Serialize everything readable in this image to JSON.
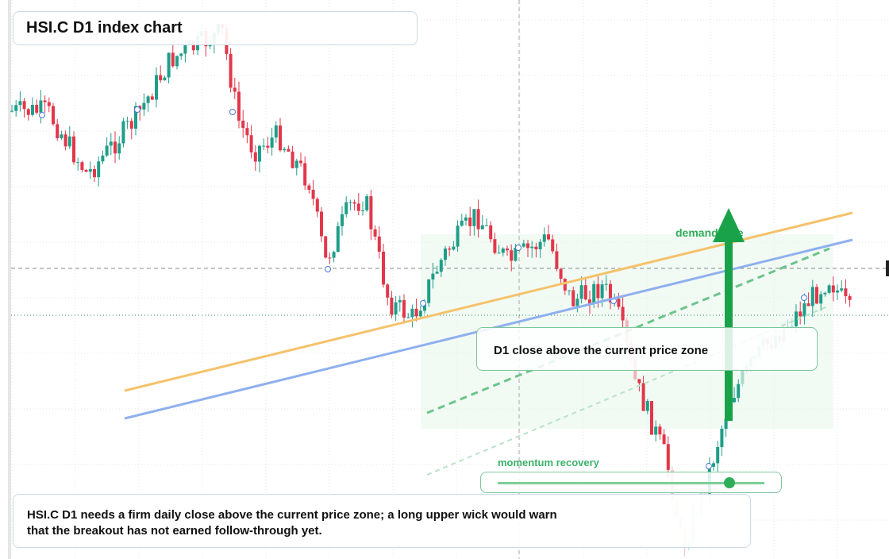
{
  "header": {
    "title": "HSI.C D1 index chart"
  },
  "annotations": {
    "zone_label": "demand side",
    "close_note": "D1 close above the current price zone",
    "momentum_label": "momentum recovery"
  },
  "caption": {
    "text": "HSI.C D1 needs a firm daily close above the current price zone; a long upper wick would warn that the breakout has not earned follow-through yet."
  }
}
